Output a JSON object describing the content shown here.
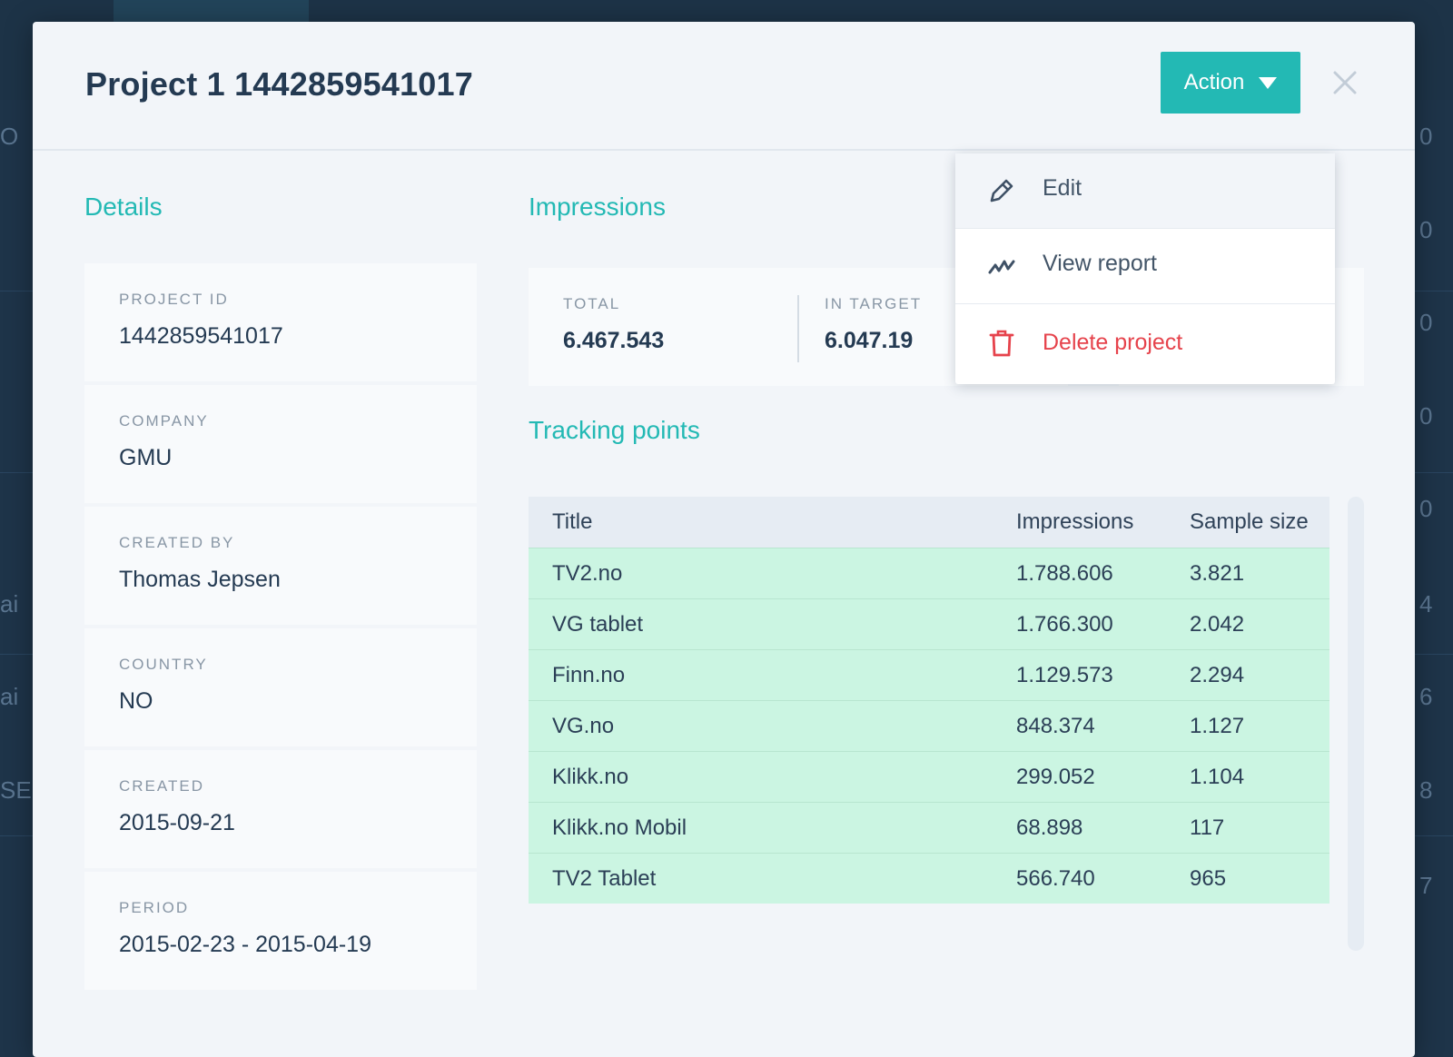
{
  "modal": {
    "title": "Project 1 1442859541017",
    "action_label": "Action"
  },
  "details": {
    "heading": "Details",
    "fields": [
      {
        "label": "PROJECT ID",
        "value": "1442859541017"
      },
      {
        "label": "COMPANY",
        "value": "GMU"
      },
      {
        "label": "CREATED BY",
        "value": "Thomas Jepsen"
      },
      {
        "label": "COUNTRY",
        "value": "NO"
      },
      {
        "label": "CREATED",
        "value": "2015-09-21"
      },
      {
        "label": "PERIOD",
        "value": "2015-02-23 - 2015-04-19"
      }
    ]
  },
  "impressions": {
    "heading": "Impressions",
    "total_label": "TOTAL",
    "total_value": "6.467.543",
    "in_target_label": "IN TARGET",
    "in_target_value": "6.047.19"
  },
  "tracking": {
    "heading": "Tracking points",
    "columns": [
      "Title",
      "Impressions",
      "Sample size"
    ],
    "rows": [
      [
        "TV2.no",
        "1.788.606",
        "3.821"
      ],
      [
        "VG tablet",
        "1.766.300",
        "2.042"
      ],
      [
        "Finn.no",
        "1.129.573",
        "2.294"
      ],
      [
        "VG.no",
        "848.374",
        "1.127"
      ],
      [
        "Klikk.no",
        "299.052",
        "1.104"
      ],
      [
        "Klikk.no Mobil",
        "68.898",
        "117"
      ],
      [
        "TV2 Tablet",
        "566.740",
        "965"
      ]
    ]
  },
  "action_menu": {
    "items": [
      {
        "label": "Edit",
        "icon": "pencil-icon"
      },
      {
        "label": "View report",
        "icon": "trend-line-icon"
      },
      {
        "label": "Delete project",
        "icon": "trash-icon",
        "danger": true
      }
    ]
  },
  "background": {
    "edge_glyphs_left": [
      "O",
      "ai",
      "ai",
      "SE"
    ],
    "edge_glyphs_right": [
      "0",
      "0",
      "0",
      "0",
      "0",
      "4",
      "6",
      "8",
      "7"
    ]
  },
  "colors": {
    "accent": "#23b9b4",
    "danger": "#e6434c",
    "highlight_row": "#cbf5e2",
    "title": "#243a52",
    "backdrop": "#1e3449"
  }
}
